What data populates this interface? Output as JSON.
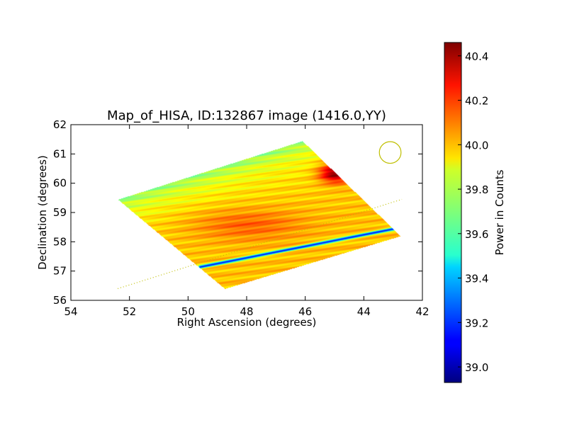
{
  "chart_data": {
    "type": "heatmap",
    "title": "Map_of_HISA, ID:132867 image (1416.0,YY)",
    "xlabel": "Right Ascension (degrees)",
    "ylabel": "Declination (degrees)",
    "xlim": [
      54,
      42
    ],
    "ylim": [
      56,
      62
    ],
    "x_ticks": [
      54,
      52,
      50,
      48,
      46,
      44,
      42
    ],
    "y_ticks": [
      56,
      57,
      58,
      59,
      60,
      61,
      62
    ],
    "colorbar": {
      "label": "Power in Counts",
      "range": [
        38.93,
        40.46
      ],
      "ticks": [
        39.0,
        39.2,
        39.4,
        39.6,
        39.8,
        40.0,
        40.2,
        40.4
      ],
      "colormap": "jet"
    },
    "coverage_corners": [
      {
        "ra": 52.4,
        "dec": 59.45
      },
      {
        "ra": 46.1,
        "dec": 61.45
      },
      {
        "ra": 42.75,
        "dec": 58.2
      },
      {
        "ra": 48.75,
        "dec": 56.4
      }
    ],
    "field_values": {
      "background": 39.98,
      "top_edge_level": 39.72,
      "hot_spot": {
        "ra": 45.0,
        "dec": 60.35,
        "peak": 40.46
      },
      "warm_band": {
        "ra": 48.0,
        "dec": 58.6,
        "peak": 40.13
      },
      "cold_stripe": {
        "start": {
          "ra": 49.6,
          "dec": 57.15
        },
        "end": {
          "ra": 43.0,
          "dec": 58.45
        },
        "value": 39.15
      }
    },
    "annotations": {
      "beam_circle": {
        "ra": 43.1,
        "dec": 61.05,
        "radius_deg": 0.37,
        "color": "#bfbf00"
      },
      "dotted_line": {
        "start": {
          "ra": 52.4,
          "dec": 56.4
        },
        "end": {
          "ra": 42.7,
          "dec": 59.45
        },
        "color": "#bfbf00"
      }
    }
  }
}
